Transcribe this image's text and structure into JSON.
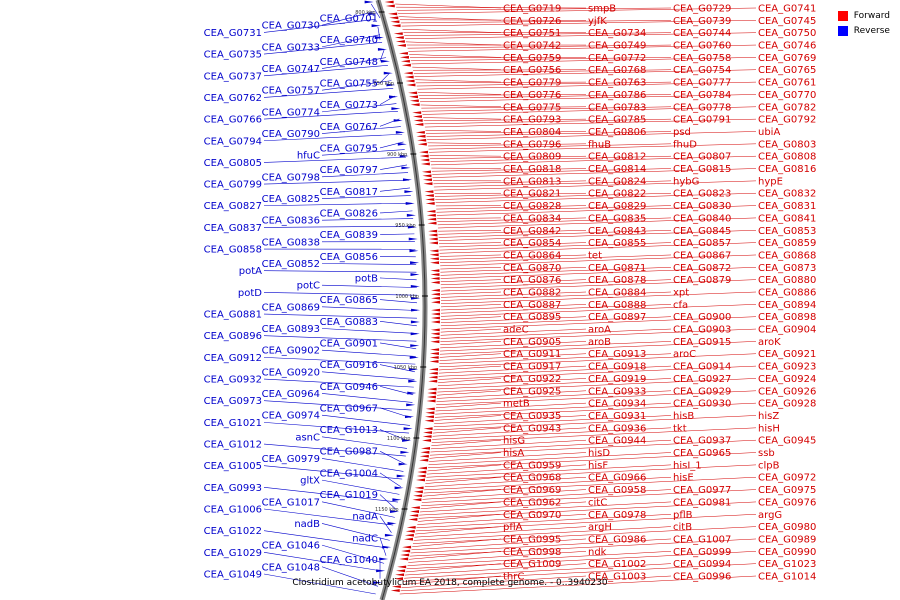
{
  "caption": "Clostridium acetobutylicum EA 2018, complete genome. - 0..3940230",
  "legend": [
    {
      "label": "Forward",
      "color": "#ff0000"
    },
    {
      "label": "Reverse",
      "color": "#0000ff"
    }
  ],
  "colors": {
    "forward": "#d40000",
    "reverse": "#0000cc",
    "backbone": "#888888"
  },
  "ticks": [
    "800 kbp",
    "850 kbp",
    "900 kbp",
    "950 kbp",
    "1000 kbp",
    "1050 kbp",
    "1100 kbp",
    "1150 kbp"
  ],
  "reverse_labels": [
    "CEA_G0701",
    "CEA_G0730",
    "CEA_G0731",
    "CEA_G0740",
    "CEA_G0733",
    "CEA_G0735",
    "CEA_G0748",
    "CEA_G0747",
    "CEA_G0737",
    "CEA_G0755",
    "CEA_G0757",
    "CEA_G0762",
    "CEA_G0773",
    "CEA_G0774",
    "CEA_G0766",
    "CEA_G0767",
    "CEA_G0790",
    "CEA_G0794",
    "CEA_G0795",
    "hfuC",
    "CEA_G0805",
    "CEA_G0797",
    "CEA_G0798",
    "CEA_G0799",
    "CEA_G0817",
    "CEA_G0825",
    "CEA_G0827",
    "CEA_G0826",
    "CEA_G0836",
    "CEA_G0837",
    "CEA_G0839",
    "CEA_G0838",
    "CEA_G0858",
    "CEA_G0856",
    "CEA_G0852",
    "potA",
    "potB",
    "potC",
    "potD",
    "CEA_G0865",
    "CEA_G0869",
    "CEA_G0881",
    "CEA_G0883",
    "CEA_G0893",
    "CEA_G0896",
    "CEA_G0901",
    "CEA_G0902",
    "CEA_G0912",
    "CEA_G0916",
    "CEA_G0920",
    "CEA_G0932",
    "CEA_G0946",
    "CEA_G0964",
    "CEA_G0973",
    "CEA_G0967",
    "CEA_G0974",
    "CEA_G1021",
    "CEA_G1013",
    "asnC",
    "CEA_G1012",
    "CEA_G0987",
    "CEA_G0979",
    "CEA_G1005",
    "CEA_G1004",
    "gltX",
    "CEA_G0993",
    "CEA_G1019",
    "CEA_G1017",
    "CEA_G1006",
    "nadA",
    "nadB",
    "CEA_G1022",
    "nadC",
    "CEA_G1046",
    "CEA_G1029",
    "CEA_G1040",
    "CEA_G1048",
    "CEA_G1049"
  ],
  "forward_labels": [
    "CEA_G0719",
    "smpB",
    "CEA_G0729",
    "CEA_G0741",
    "CEA_G0726",
    "yjfK",
    "CEA_G0739",
    "CEA_G0745",
    "CEA_G0751",
    "CEA_G0734",
    "CEA_G0744",
    "CEA_G0750",
    "CEA_G0742",
    "CEA_G0749",
    "CEA_G0760",
    "CEA_G0746",
    "CEA_G0759",
    "CEA_G0772",
    "CEA_G0758",
    "CEA_G0769",
    "CEA_G0756",
    "CEA_G0768",
    "CEA_G0754",
    "CEA_G0765",
    "CEA_G0779",
    "CEA_G0763",
    "CEA_G0777",
    "CEA_G0761",
    "CEA_G0776",
    "CEA_G0786",
    "CEA_G0784",
    "CEA_G0770",
    "CEA_G0775",
    "CEA_G0783",
    "CEA_G0778",
    "CEA_G0782",
    "CEA_G0793",
    "CEA_G0785",
    "CEA_G0791",
    "CEA_G0792",
    "CEA_G0804",
    "CEA_G0806",
    "psd",
    "ubiA",
    "CEA_G0796",
    "fhuB",
    "fhuD",
    "CEA_G0803",
    "CEA_G0809",
    "CEA_G0812",
    "CEA_G0807",
    "CEA_G0808",
    "CEA_G0818",
    "CEA_G0814",
    "CEA_G0815",
    "CEA_G0816",
    "CEA_G0813",
    "CEA_G0824",
    "hybG",
    "hypE",
    "CEA_G0821",
    "CEA_G0822",
    "CEA_G0823",
    "CEA_G0832",
    "CEA_G0828",
    "CEA_G0829",
    "CEA_G0830",
    "CEA_G0831",
    "CEA_G0834",
    "CEA_G0835",
    "CEA_G0840",
    "CEA_G0841",
    "CEA_G0842",
    "CEA_G0843",
    "CEA_G0845",
    "CEA_G0853",
    "CEA_G0854",
    "CEA_G0855",
    "CEA_G0857",
    "CEA_G0859",
    "CEA_G0864",
    "tet",
    "CEA_G0867",
    "CEA_G0868",
    "CEA_G0870",
    "CEA_G0871",
    "CEA_G0872",
    "CEA_G0873",
    "CEA_G0876",
    "CEA_G0878",
    "CEA_G0879",
    "CEA_G0880",
    "CEA_G0882",
    "CEA_G0884",
    "xpt",
    "CEA_G0886",
    "CEA_G0887",
    "CEA_G0888",
    "cfa",
    "CEA_G0894",
    "CEA_G0895",
    "CEA_G0897",
    "CEA_G0900",
    "CEA_G0898",
    "adeC",
    "aroA",
    "CEA_G0903",
    "CEA_G0904",
    "CEA_G0905",
    "aroB",
    "CEA_G0915",
    "aroK",
    "CEA_G0911",
    "CEA_G0913",
    "aroC",
    "CEA_G0921",
    "CEA_G0917",
    "CEA_G0918",
    "CEA_G0914",
    "CEA_G0923",
    "CEA_G0922",
    "CEA_G0919",
    "CEA_G0927",
    "CEA_G0924",
    "CEA_G0925",
    "CEA_G0933",
    "CEA_G0929",
    "CEA_G0926",
    "metB",
    "CEA_G0934",
    "CEA_G0930",
    "CEA_G0928",
    "CEA_G0935",
    "CEA_G0931",
    "hisB",
    "hisZ",
    "CEA_G0943",
    "CEA_G0936",
    "tkt",
    "hisH",
    "hisG",
    "CEA_G0944",
    "CEA_G0937",
    "CEA_G0945",
    "hisA",
    "hisD",
    "CEA_G0965",
    "ssb",
    "CEA_G0959",
    "hisF",
    "hisI_1",
    "clpB",
    "CEA_G0968",
    "CEA_G0966",
    "hisE",
    "CEA_G0972",
    "CEA_G0969",
    "CEA_G0958",
    "CEA_G0977",
    "CEA_G0975",
    "CEA_G0962",
    "citC",
    "CEA_G0981",
    "CEA_G0976",
    "CEA_G0970",
    "CEA_G0978",
    "pflB",
    "argG",
    "pflA",
    "argH",
    "citB",
    "CEA_G0980",
    "CEA_G0995",
    "CEA_G0986",
    "CEA_G1007",
    "CEA_G0989",
    "CEA_G0998",
    "ndk",
    "CEA_G0999",
    "CEA_G0990",
    "CEA_G1009",
    "CEA_G1002",
    "CEA_G0994",
    "CEA_G1023",
    "thrC",
    "CEA_G1003",
    "CEA_G0996",
    "CEA_G1014"
  ]
}
